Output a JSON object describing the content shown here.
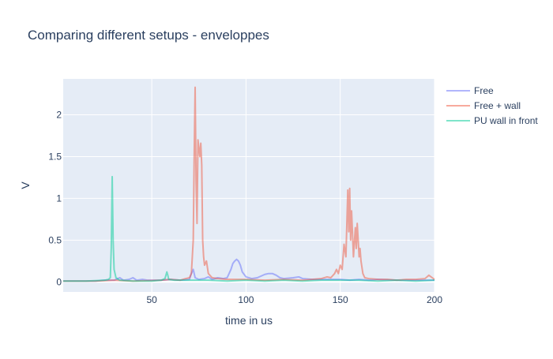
{
  "chart_data": {
    "type": "line",
    "title": "Comparing different setups - enveloppes",
    "xlabel": "time in us",
    "ylabel": "V",
    "xlim": [
      3,
      200
    ],
    "ylim": [
      -0.12,
      2.43
    ],
    "xticks": [
      50,
      100,
      150,
      200
    ],
    "yticks": [
      0,
      0.5,
      1,
      1.5,
      2
    ],
    "xtick_labels": [
      "50",
      "100",
      "150",
      "200"
    ],
    "ytick_labels": [
      "0",
      "0.5",
      "1",
      "1.5",
      "2"
    ],
    "grid": true,
    "legend_position": "top-right",
    "series": [
      {
        "name": "Free",
        "color": "#636efa",
        "opacity": 0.5,
        "points": [
          [
            3,
            0.01
          ],
          [
            10,
            0.01
          ],
          [
            20,
            0.01
          ],
          [
            25,
            0.02
          ],
          [
            30,
            0.02
          ],
          [
            33,
            0.05
          ],
          [
            35,
            0.02
          ],
          [
            38,
            0.03
          ],
          [
            40,
            0.05
          ],
          [
            42,
            0.02
          ],
          [
            45,
            0.03
          ],
          [
            48,
            0.02
          ],
          [
            55,
            0.02
          ],
          [
            60,
            0.03
          ],
          [
            65,
            0.02
          ],
          [
            70,
            0.03
          ],
          [
            71,
            0.1
          ],
          [
            72,
            0.15
          ],
          [
            73,
            0.05
          ],
          [
            75,
            0.03
          ],
          [
            78,
            0.04
          ],
          [
            80,
            0.06
          ],
          [
            82,
            0.03
          ],
          [
            85,
            0.05
          ],
          [
            88,
            0.04
          ],
          [
            90,
            0.05
          ],
          [
            92,
            0.15
          ],
          [
            93,
            0.22
          ],
          [
            94,
            0.25
          ],
          [
            95,
            0.27
          ],
          [
            96,
            0.25
          ],
          [
            97,
            0.2
          ],
          [
            98,
            0.12
          ],
          [
            100,
            0.06
          ],
          [
            103,
            0.04
          ],
          [
            106,
            0.05
          ],
          [
            108,
            0.07
          ],
          [
            110,
            0.09
          ],
          [
            112,
            0.1
          ],
          [
            114,
            0.1
          ],
          [
            116,
            0.08
          ],
          [
            118,
            0.05
          ],
          [
            120,
            0.04
          ],
          [
            125,
            0.05
          ],
          [
            128,
            0.06
          ],
          [
            130,
            0.04
          ],
          [
            135,
            0.03
          ],
          [
            140,
            0.03
          ],
          [
            145,
            0.03
          ],
          [
            150,
            0.03
          ],
          [
            155,
            0.02
          ],
          [
            160,
            0.03
          ],
          [
            165,
            0.02
          ],
          [
            170,
            0.03
          ],
          [
            180,
            0.02
          ],
          [
            190,
            0.02
          ],
          [
            200,
            0.02
          ]
        ]
      },
      {
        "name": "Free + wall",
        "color": "#ef553b",
        "opacity": 0.5,
        "points": [
          [
            3,
            0.01
          ],
          [
            20,
            0.01
          ],
          [
            30,
            0.02
          ],
          [
            40,
            0.01
          ],
          [
            55,
            0.02
          ],
          [
            60,
            0.03
          ],
          [
            65,
            0.02
          ],
          [
            68,
            0.04
          ],
          [
            70,
            0.05
          ],
          [
            71,
            0.1
          ],
          [
            72,
            0.5
          ],
          [
            72.5,
            1.5
          ],
          [
            73,
            2.33
          ],
          [
            73.5,
            1.2
          ],
          [
            74,
            0.7
          ],
          [
            74.5,
            1.7
          ],
          [
            75,
            1.6
          ],
          [
            75.5,
            1.5
          ],
          [
            76,
            1.66
          ],
          [
            76.5,
            1.4
          ],
          [
            77,
            0.5
          ],
          [
            77.5,
            0.3
          ],
          [
            78,
            0.2
          ],
          [
            79,
            0.25
          ],
          [
            80,
            0.1
          ],
          [
            82,
            0.05
          ],
          [
            85,
            0.04
          ],
          [
            90,
            0.03
          ],
          [
            100,
            0.03
          ],
          [
            110,
            0.02
          ],
          [
            120,
            0.03
          ],
          [
            130,
            0.02
          ],
          [
            140,
            0.04
          ],
          [
            143,
            0.06
          ],
          [
            145,
            0.05
          ],
          [
            147,
            0.1
          ],
          [
            148,
            0.15
          ],
          [
            149,
            0.1
          ],
          [
            150,
            0.2
          ],
          [
            151,
            0.15
          ],
          [
            152,
            0.45
          ],
          [
            153,
            0.3
          ],
          [
            154,
            1.1
          ],
          [
            154.5,
            0.6
          ],
          [
            155,
            1.12
          ],
          [
            155.5,
            0.5
          ],
          [
            156,
            0.85
          ],
          [
            157,
            0.3
          ],
          [
            158,
            0.65
          ],
          [
            158.5,
            0.4
          ],
          [
            159,
            0.7
          ],
          [
            160,
            0.3
          ],
          [
            160.5,
            0.4
          ],
          [
            161,
            0.25
          ],
          [
            162,
            0.1
          ],
          [
            163,
            0.05
          ],
          [
            165,
            0.04
          ],
          [
            170,
            0.03
          ],
          [
            175,
            0.03
          ],
          [
            180,
            0.02
          ],
          [
            185,
            0.03
          ],
          [
            190,
            0.03
          ],
          [
            195,
            0.04
          ],
          [
            197,
            0.08
          ],
          [
            200,
            0.03
          ]
        ]
      },
      {
        "name": "PU wall in front",
        "color": "#00cc96",
        "opacity": 0.5,
        "points": [
          [
            3,
            0.01
          ],
          [
            15,
            0.01
          ],
          [
            25,
            0.02
          ],
          [
            27,
            0.03
          ],
          [
            28,
            0.05
          ],
          [
            28.5,
            0.4
          ],
          [
            29,
            1.26
          ],
          [
            29.5,
            0.5
          ],
          [
            30,
            0.15
          ],
          [
            31,
            0.05
          ],
          [
            33,
            0.02
          ],
          [
            40,
            0.01
          ],
          [
            50,
            0.01
          ],
          [
            55,
            0.02
          ],
          [
            57,
            0.04
          ],
          [
            58,
            0.12
          ],
          [
            58.5,
            0.08
          ],
          [
            59,
            0.03
          ],
          [
            62,
            0.02
          ],
          [
            70,
            0.02
          ],
          [
            80,
            0.02
          ],
          [
            90,
            0.01
          ],
          [
            100,
            0.02
          ],
          [
            110,
            0.01
          ],
          [
            120,
            0.02
          ],
          [
            130,
            0.01
          ],
          [
            140,
            0.02
          ],
          [
            150,
            0.02
          ],
          [
            160,
            0.02
          ],
          [
            170,
            0.01
          ],
          [
            180,
            0.02
          ],
          [
            190,
            0.01
          ],
          [
            200,
            0.02
          ]
        ]
      }
    ]
  }
}
